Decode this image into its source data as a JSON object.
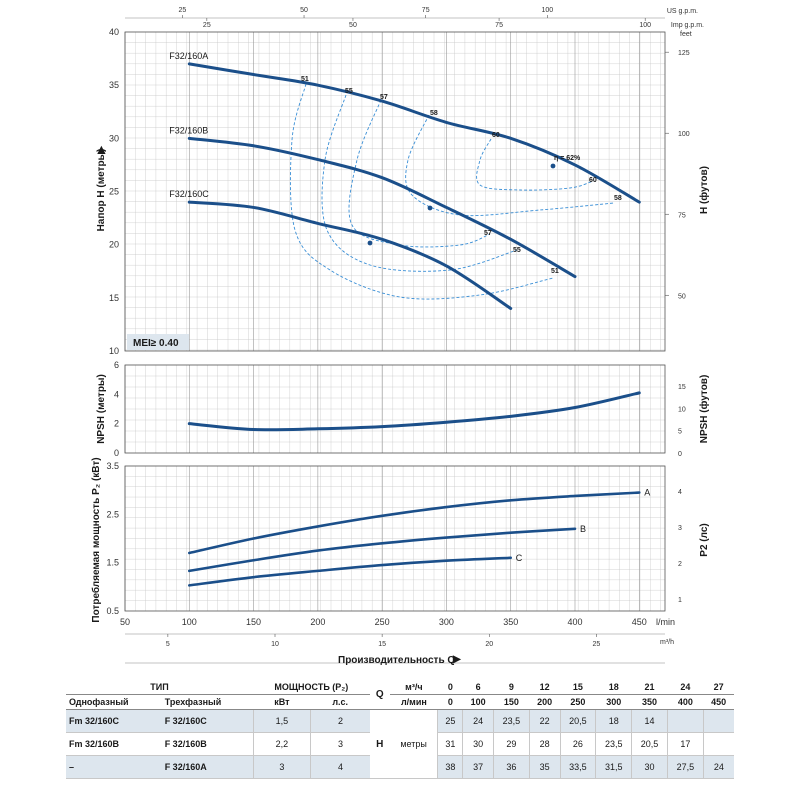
{
  "top_axes": {
    "us_gpm_label": "US g.p.m.",
    "us_gpm_ticks": [
      "25",
      "50",
      "75",
      "100"
    ],
    "imp_gpm_label": "Imp g.p.m.",
    "imp_gpm_ticks": [
      "25",
      "50",
      "75",
      "100"
    ]
  },
  "chart_data": [
    {
      "type": "line",
      "title": "",
      "xlabel": "",
      "ylabel": "Напор H (метры)",
      "ylabel_right": "H (футов)",
      "right_unit": "feet",
      "xlim": [
        50,
        470
      ],
      "ylim": [
        10,
        40
      ],
      "yticks": [
        10,
        15,
        20,
        25,
        30,
        35,
        40
      ],
      "yticks_right": [
        50,
        75,
        100,
        125
      ],
      "badge": "MEI≥ 0.40",
      "series": [
        {
          "name": "F32/160A",
          "x": [
            100,
            150,
            200,
            250,
            300,
            350,
            400,
            450
          ],
          "y": [
            37,
            36,
            35,
            33.5,
            31.5,
            30,
            27.5,
            24
          ]
        },
        {
          "name": "F32/160B",
          "x": [
            100,
            150,
            200,
            250,
            300,
            350,
            400
          ],
          "y": [
            30,
            29.3,
            28,
            26.3,
            23.5,
            20.5,
            17
          ]
        },
        {
          "name": "F32/160C",
          "x": [
            100,
            150,
            200,
            250,
            300,
            350
          ],
          "y": [
            24,
            23.5,
            22,
            20.5,
            18,
            14
          ]
        }
      ],
      "efficiency_labels": [
        "51",
        "55",
        "57",
        "58",
        "60",
        "η = 62%",
        "60",
        "58",
        "57",
        "55",
        "51"
      ]
    },
    {
      "type": "line",
      "title": "",
      "ylabel": "NPSH (метры)",
      "ylabel_right": "NPSH (футов)",
      "xlim": [
        50,
        470
      ],
      "ylim": [
        0,
        6
      ],
      "yticks": [
        0,
        2,
        4,
        6
      ],
      "yticks_right": [
        0,
        5,
        10,
        15
      ],
      "series": [
        {
          "x": [
            100,
            150,
            200,
            250,
            300,
            350,
            400,
            450
          ],
          "y": [
            2,
            1.6,
            1.65,
            1.8,
            2.1,
            2.5,
            3.1,
            4.1
          ]
        }
      ]
    },
    {
      "type": "line",
      "title": "",
      "xlabel": "Производительность Q",
      "ylabel": "Потребляемая мощность P₂ (кВт)",
      "ylabel_right": "P2 (лс)",
      "xlim": [
        50,
        470
      ],
      "ylim": [
        0.5,
        3.5
      ],
      "yticks": [
        "0.5",
        "1.5",
        "2.5",
        "3.5"
      ],
      "yticks_right": [
        "1",
        "2",
        "3",
        "4"
      ],
      "x_unit_lmin": "l/min",
      "x_unit_m3h": "m³/h",
      "xticks_lmin": [
        "50",
        "100",
        "150",
        "200",
        "250",
        "300",
        "350",
        "400",
        "450"
      ],
      "xticks_m3h": [
        "5",
        "10",
        "15",
        "20",
        "25"
      ],
      "series": [
        {
          "name": "A",
          "x": [
            100,
            150,
            200,
            250,
            300,
            350,
            400,
            450
          ],
          "y": [
            1.7,
            2.0,
            2.25,
            2.47,
            2.65,
            2.79,
            2.88,
            2.95
          ]
        },
        {
          "name": "B",
          "x": [
            100,
            150,
            200,
            250,
            300,
            350,
            400
          ],
          "y": [
            1.33,
            1.55,
            1.75,
            1.9,
            2.02,
            2.12,
            2.2
          ]
        },
        {
          "name": "C",
          "x": [
            100,
            150,
            200,
            250,
            300,
            350
          ],
          "y": [
            1.03,
            1.2,
            1.33,
            1.45,
            1.54,
            1.6
          ]
        }
      ]
    }
  ],
  "table": {
    "tip_label": "ТИП",
    "power_label": "МОЩНОСТЬ (P₂)",
    "q_label": "Q",
    "h_label": "H",
    "m3h_unit": "м³/ч",
    "lmin_unit": "л/мин",
    "meters_label": "метры",
    "single_phase": "Однофазный",
    "three_phase": "Трехфазный",
    "kw": "кВт",
    "hp": "л.с.",
    "m3h_values": [
      "0",
      "6",
      "9",
      "12",
      "15",
      "18",
      "21",
      "24",
      "27"
    ],
    "lmin_values": [
      "0",
      "100",
      "150",
      "200",
      "250",
      "300",
      "350",
      "400",
      "450"
    ],
    "rows": [
      {
        "single": "Fm 32/160C",
        "three": "F 32/160C",
        "kw": "1,5",
        "hp": "2",
        "h": [
          "25",
          "24",
          "23,5",
          "22",
          "20,5",
          "18",
          "14",
          "",
          ""
        ]
      },
      {
        "single": "Fm 32/160B",
        "three": "F 32/160B",
        "kw": "2,2",
        "hp": "3",
        "h": [
          "31",
          "30",
          "29",
          "28",
          "26",
          "23,5",
          "20,5",
          "17",
          ""
        ]
      },
      {
        "single": "–",
        "three": "F 32/160A",
        "kw": "3",
        "hp": "4",
        "h": [
          "38",
          "37",
          "36",
          "35",
          "33,5",
          "31,5",
          "30",
          "27,5",
          "24"
        ]
      }
    ]
  },
  "colors": {
    "curve": "#1b4f8a",
    "dashed": "#3a8fd6",
    "grid": "#c8c8c8",
    "grid_major": "#9a9a9a",
    "badge": "#dde6ee"
  }
}
